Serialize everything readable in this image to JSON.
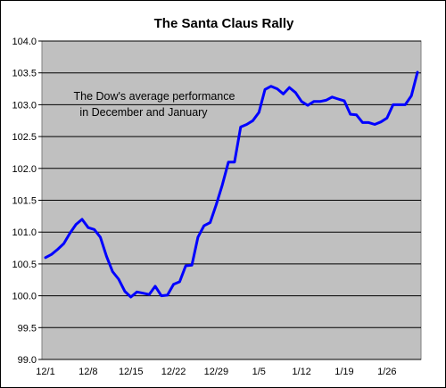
{
  "chart_data": {
    "type": "line",
    "title": "The Santa Claus Rally",
    "xlabel": "",
    "ylabel": "",
    "ylim": [
      99.0,
      104.0
    ],
    "y_ticks": [
      "99.0",
      "99.5",
      "100.0",
      "100.5",
      "101.0",
      "101.5",
      "102.0",
      "102.5",
      "103.0",
      "103.5",
      "104.0"
    ],
    "x_ticks": [
      "12/1",
      "12/8",
      "12/15",
      "12/22",
      "12/29",
      "1/5",
      "1/12",
      "1/19",
      "1/26"
    ],
    "grid": "horizontal",
    "legend": "none",
    "annotation": [
      "The Dow's average performance",
      "in December and January"
    ],
    "colors": {
      "line": "#0000ff",
      "plot_background": "#c0c0c0",
      "grid": "#000000"
    },
    "series": [
      {
        "values": [
          100.6,
          100.65,
          100.73,
          100.82,
          100.98,
          101.12,
          101.2,
          101.07,
          101.04,
          100.92,
          100.62,
          100.38,
          100.26,
          100.07,
          99.98,
          100.06,
          100.04,
          100.02,
          100.15,
          100.0,
          100.01,
          100.18,
          100.22,
          100.47,
          100.48,
          100.92,
          101.1,
          101.15,
          101.43,
          101.74,
          102.1,
          102.1,
          102.65,
          102.69,
          102.75,
          102.88,
          103.24,
          103.29,
          103.25,
          103.17,
          103.27,
          103.19,
          103.05,
          102.99,
          103.05,
          103.05,
          103.07,
          103.12,
          103.09,
          103.06,
          102.85,
          102.84,
          102.72,
          102.72,
          102.69,
          102.73,
          102.79,
          103.0,
          103.0,
          103.0,
          103.14,
          103.51
        ]
      }
    ]
  }
}
